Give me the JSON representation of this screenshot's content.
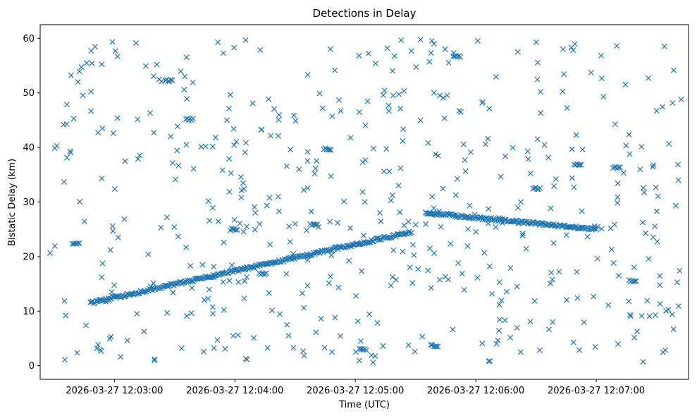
{
  "chart_data": {
    "type": "scatter",
    "title": "Detections in Delay",
    "xlabel": "Time (UTC)",
    "ylabel": "Bistatic Delay (km)",
    "x_unit": "UTC time",
    "xlim": [
      "2026-03-27 12:02:23",
      "2026-03-27 12:07:46"
    ],
    "ylim": [
      -2.5,
      62.5
    ],
    "x_ticks": [
      "2026-03-27 12:03:00",
      "2026-03-27 12:04:00",
      "2026-03-27 12:05:00",
      "2026-03-27 12:06:00",
      "2026-03-27 12:07:00"
    ],
    "y_ticks": [
      0,
      10,
      20,
      30,
      40,
      50,
      60
    ],
    "marker": "x",
    "series_color": "#1f77b4",
    "grid": false,
    "legend": "none",
    "tracks": [
      {
        "description": "rising target",
        "x_start": "2026-03-27 12:02:48",
        "y_start": 11.5,
        "x_end": "2026-03-27 12:05:28",
        "y_end": 24.5
      },
      {
        "description": "descending target",
        "x_start": "2026-03-27 12:05:35",
        "y_start": 28.0,
        "x_end": "2026-03-27 12:07:00",
        "y_end": 25.0
      }
    ],
    "noise_detections": {
      "x_range": [
        "2026-03-27 12:02:27",
        "2026-03-27 12:07:43"
      ],
      "y_range": [
        0.5,
        59.8
      ]
    }
  }
}
